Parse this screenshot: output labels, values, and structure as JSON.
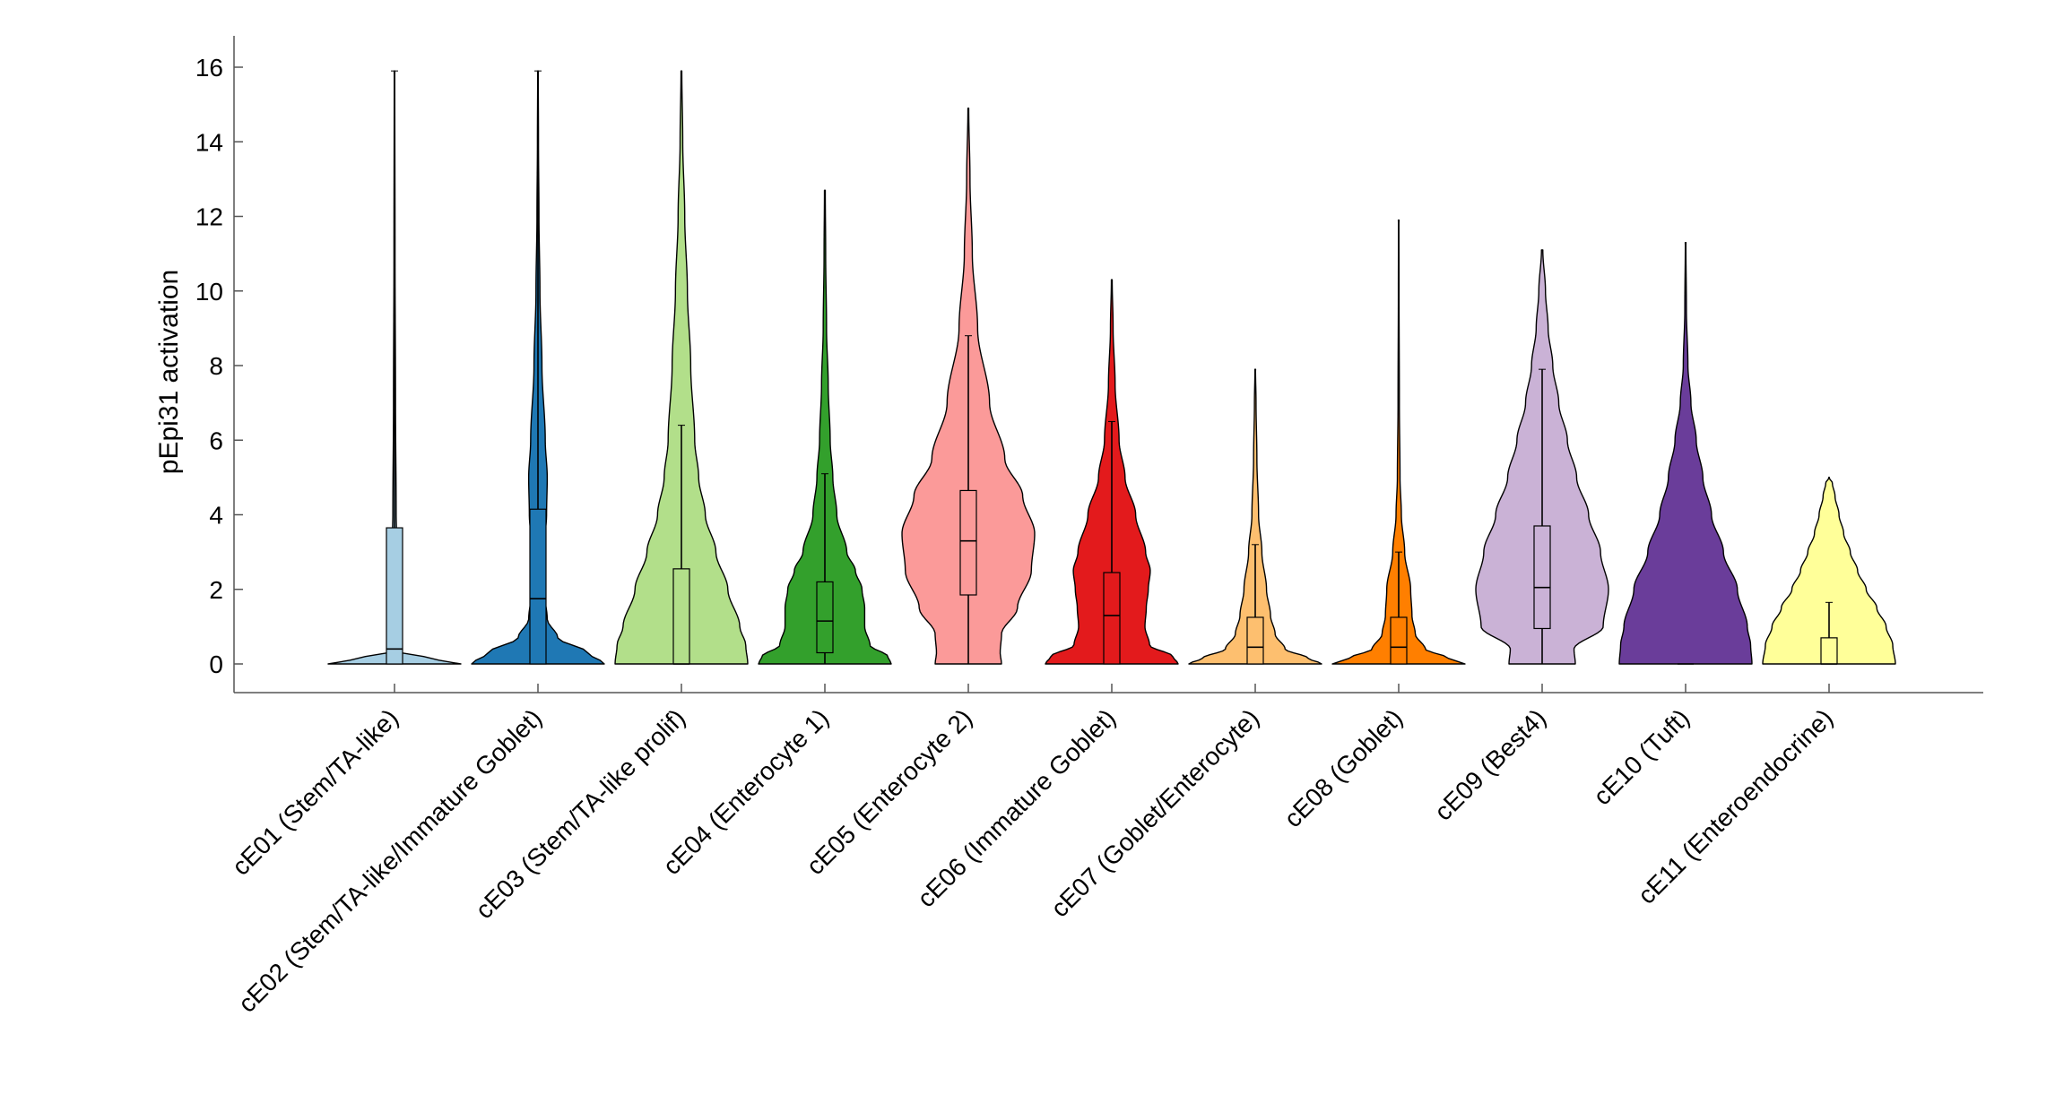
{
  "chart_data": {
    "type": "violin",
    "title": "",
    "xlabel": "",
    "ylabel": "pEpi31 activation",
    "ylim": [
      -0.8,
      16.6
    ],
    "yticks": [
      0,
      2,
      4,
      6,
      8,
      10,
      12,
      14,
      16
    ],
    "categories": [
      "cE01 (Stem/TA-like)",
      "cE02 (Stem/TA-like/Immature Goblet)",
      "cE03 (Stem/TA-like prolif)",
      "cE04 (Enterocyte 1)",
      "cE05 (Enterocyte 2)",
      "cE06 (Immature Goblet)",
      "cE07 (Goblet/Enterocyte)",
      "cE08 (Goblet)",
      "cE09 (Best4)",
      "cE10 (Tuft)",
      "cE11 (Enteroendocrine)"
    ],
    "series": [
      {
        "name": "cE01 (Stem/TA-like)",
        "color": "#a6cee3",
        "max": 15.9,
        "q1": 0.0,
        "median": 0.4,
        "q3": 3.65,
        "whisker_high": 15.9,
        "profile": [
          [
            0,
            1.0
          ],
          [
            0.15,
            0.55
          ],
          [
            0.3,
            0.1
          ],
          [
            0.6,
            0.04
          ],
          [
            2,
            0.03
          ],
          [
            3.5,
            0.03
          ],
          [
            4,
            0.025
          ],
          [
            7,
            0.015
          ],
          [
            11,
            0.008
          ],
          [
            15.9,
            0.004
          ]
        ]
      },
      {
        "name": "cE02 (Stem/TA-like/Immature Goblet)",
        "color": "#1f78b4",
        "max": 15.9,
        "q1": 0.0,
        "median": 1.75,
        "q3": 4.15,
        "whisker_high": 15.9,
        "profile": [
          [
            0,
            1.0
          ],
          [
            0.3,
            0.75
          ],
          [
            0.7,
            0.3
          ],
          [
            1.2,
            0.14
          ],
          [
            2,
            0.09
          ],
          [
            3,
            0.08
          ],
          [
            4,
            0.13
          ],
          [
            5,
            0.14
          ],
          [
            6,
            0.11
          ],
          [
            8,
            0.06
          ],
          [
            10,
            0.03
          ],
          [
            12,
            0.015
          ],
          [
            14,
            0.008
          ],
          [
            15.9,
            0.004
          ]
        ]
      },
      {
        "name": "cE03 (Stem/TA-like prolif)",
        "color": "#b2df8a",
        "max": 15.9,
        "q1": 0.0,
        "median": 0.0,
        "q3": 2.55,
        "whisker_high": 6.4,
        "profile": [
          [
            0,
            1.0
          ],
          [
            0.5,
            0.97
          ],
          [
            1,
            0.88
          ],
          [
            2,
            0.7
          ],
          [
            3,
            0.52
          ],
          [
            4,
            0.36
          ],
          [
            5,
            0.26
          ],
          [
            6,
            0.2
          ],
          [
            8,
            0.14
          ],
          [
            10,
            0.09
          ],
          [
            12,
            0.05
          ],
          [
            14,
            0.02
          ],
          [
            15.9,
            0.006
          ]
        ]
      },
      {
        "name": "cE04 (Enterocyte 1)",
        "color": "#33a02c",
        "max": 12.7,
        "q1": 0.3,
        "median": 1.15,
        "q3": 2.2,
        "whisker_high": 5.1,
        "profile": [
          [
            0,
            1.0
          ],
          [
            0.2,
            0.95
          ],
          [
            0.5,
            0.68
          ],
          [
            1,
            0.6
          ],
          [
            1.5,
            0.6
          ],
          [
            2,
            0.56
          ],
          [
            2.5,
            0.46
          ],
          [
            3,
            0.33
          ],
          [
            4,
            0.18
          ],
          [
            5,
            0.12
          ],
          [
            6,
            0.08
          ],
          [
            7.5,
            0.05
          ],
          [
            9,
            0.025
          ],
          [
            11,
            0.012
          ],
          [
            12.7,
            0.006
          ]
        ]
      },
      {
        "name": "cE05 (Enterocyte 2)",
        "color": "#fb9a99",
        "max": 14.9,
        "q1": 1.85,
        "median": 3.3,
        "q3": 4.65,
        "whisker_high": 8.8,
        "profile": [
          [
            0,
            0.5
          ],
          [
            0.3,
            0.48
          ],
          [
            0.8,
            0.5
          ],
          [
            1.5,
            0.74
          ],
          [
            2.5,
            0.95
          ],
          [
            3.5,
            1.0
          ],
          [
            4.5,
            0.82
          ],
          [
            5.5,
            0.55
          ],
          [
            7,
            0.32
          ],
          [
            9,
            0.14
          ],
          [
            11,
            0.06
          ],
          [
            13,
            0.025
          ],
          [
            14.9,
            0.006
          ]
        ]
      },
      {
        "name": "cE06 (Immature Goblet)",
        "color": "#e31a1c",
        "max": 10.3,
        "q1": 0.0,
        "median": 1.3,
        "q3": 2.45,
        "whisker_high": 6.5,
        "profile": [
          [
            0,
            1.0
          ],
          [
            0.2,
            0.92
          ],
          [
            0.5,
            0.57
          ],
          [
            1,
            0.5
          ],
          [
            1.5,
            0.52
          ],
          [
            2,
            0.55
          ],
          [
            2.5,
            0.58
          ],
          [
            3,
            0.51
          ],
          [
            4,
            0.36
          ],
          [
            5,
            0.2
          ],
          [
            6,
            0.11
          ],
          [
            7.5,
            0.05
          ],
          [
            9,
            0.02
          ],
          [
            10.3,
            0.006
          ]
        ]
      },
      {
        "name": "cE07 (Goblet/Enterocyte)",
        "color": "#fdbf6f",
        "max": 7.9,
        "q1": 0.0,
        "median": 0.45,
        "q3": 1.25,
        "whisker_high": 3.2,
        "profile": [
          [
            0,
            1.0
          ],
          [
            0.15,
            0.8
          ],
          [
            0.4,
            0.45
          ],
          [
            0.8,
            0.3
          ],
          [
            1.3,
            0.23
          ],
          [
            2,
            0.17
          ],
          [
            3,
            0.1
          ],
          [
            4,
            0.05
          ],
          [
            5.5,
            0.025
          ],
          [
            7,
            0.012
          ],
          [
            7.9,
            0.004
          ]
        ]
      },
      {
        "name": "cE08 (Goblet)",
        "color": "#ff7f00",
        "max": 11.9,
        "q1": 0.0,
        "median": 0.45,
        "q3": 1.25,
        "whisker_high": 3.0,
        "profile": [
          [
            0,
            1.0
          ],
          [
            0.15,
            0.75
          ],
          [
            0.4,
            0.4
          ],
          [
            0.8,
            0.25
          ],
          [
            1.3,
            0.2
          ],
          [
            2,
            0.18
          ],
          [
            3,
            0.09
          ],
          [
            4,
            0.04
          ],
          [
            5,
            0.02
          ],
          [
            7,
            0.01
          ],
          [
            10,
            0.005
          ],
          [
            11.9,
            0.003
          ]
        ]
      },
      {
        "name": "cE09 (Best4)",
        "color": "#cab2d6",
        "max": 11.1,
        "q1": 0.95,
        "median": 2.05,
        "q3": 3.7,
        "whisker_high": 7.9,
        "profile": [
          [
            0,
            0.5
          ],
          [
            0.4,
            0.48
          ],
          [
            1,
            0.92
          ],
          [
            2,
            1.0
          ],
          [
            3,
            0.88
          ],
          [
            4,
            0.7
          ],
          [
            5,
            0.52
          ],
          [
            6,
            0.38
          ],
          [
            7,
            0.25
          ],
          [
            8,
            0.16
          ],
          [
            9,
            0.09
          ],
          [
            10,
            0.05
          ],
          [
            11.1,
            0.01
          ]
        ]
      },
      {
        "name": "cE10 (Tuft)",
        "color": "#6a3d9a",
        "max": 11.3,
        "q1": 0.0,
        "median": 0.0,
        "q3": 0.0,
        "whisker_high": 0.0,
        "profile": [
          [
            0,
            1.0
          ],
          [
            0.5,
            0.98
          ],
          [
            1,
            0.93
          ],
          [
            2,
            0.78
          ],
          [
            3,
            0.57
          ],
          [
            4,
            0.39
          ],
          [
            5,
            0.26
          ],
          [
            6,
            0.16
          ],
          [
            7,
            0.08
          ],
          [
            8,
            0.035
          ],
          [
            9.5,
            0.012
          ],
          [
            11.3,
            0.004
          ]
        ]
      },
      {
        "name": "cE11 (Enteroendocrine)",
        "color": "#ffff99",
        "max": 5.0,
        "q1": 0.0,
        "median": 0.0,
        "q3": 0.7,
        "whisker_high": 1.65,
        "profile": [
          [
            0,
            1.0
          ],
          [
            0.5,
            0.96
          ],
          [
            1,
            0.86
          ],
          [
            1.5,
            0.72
          ],
          [
            2,
            0.56
          ],
          [
            2.5,
            0.43
          ],
          [
            3,
            0.32
          ],
          [
            3.5,
            0.22
          ],
          [
            4,
            0.15
          ],
          [
            4.5,
            0.09
          ],
          [
            4.85,
            0.05
          ],
          [
            5.0,
            0.0
          ]
        ]
      }
    ]
  }
}
